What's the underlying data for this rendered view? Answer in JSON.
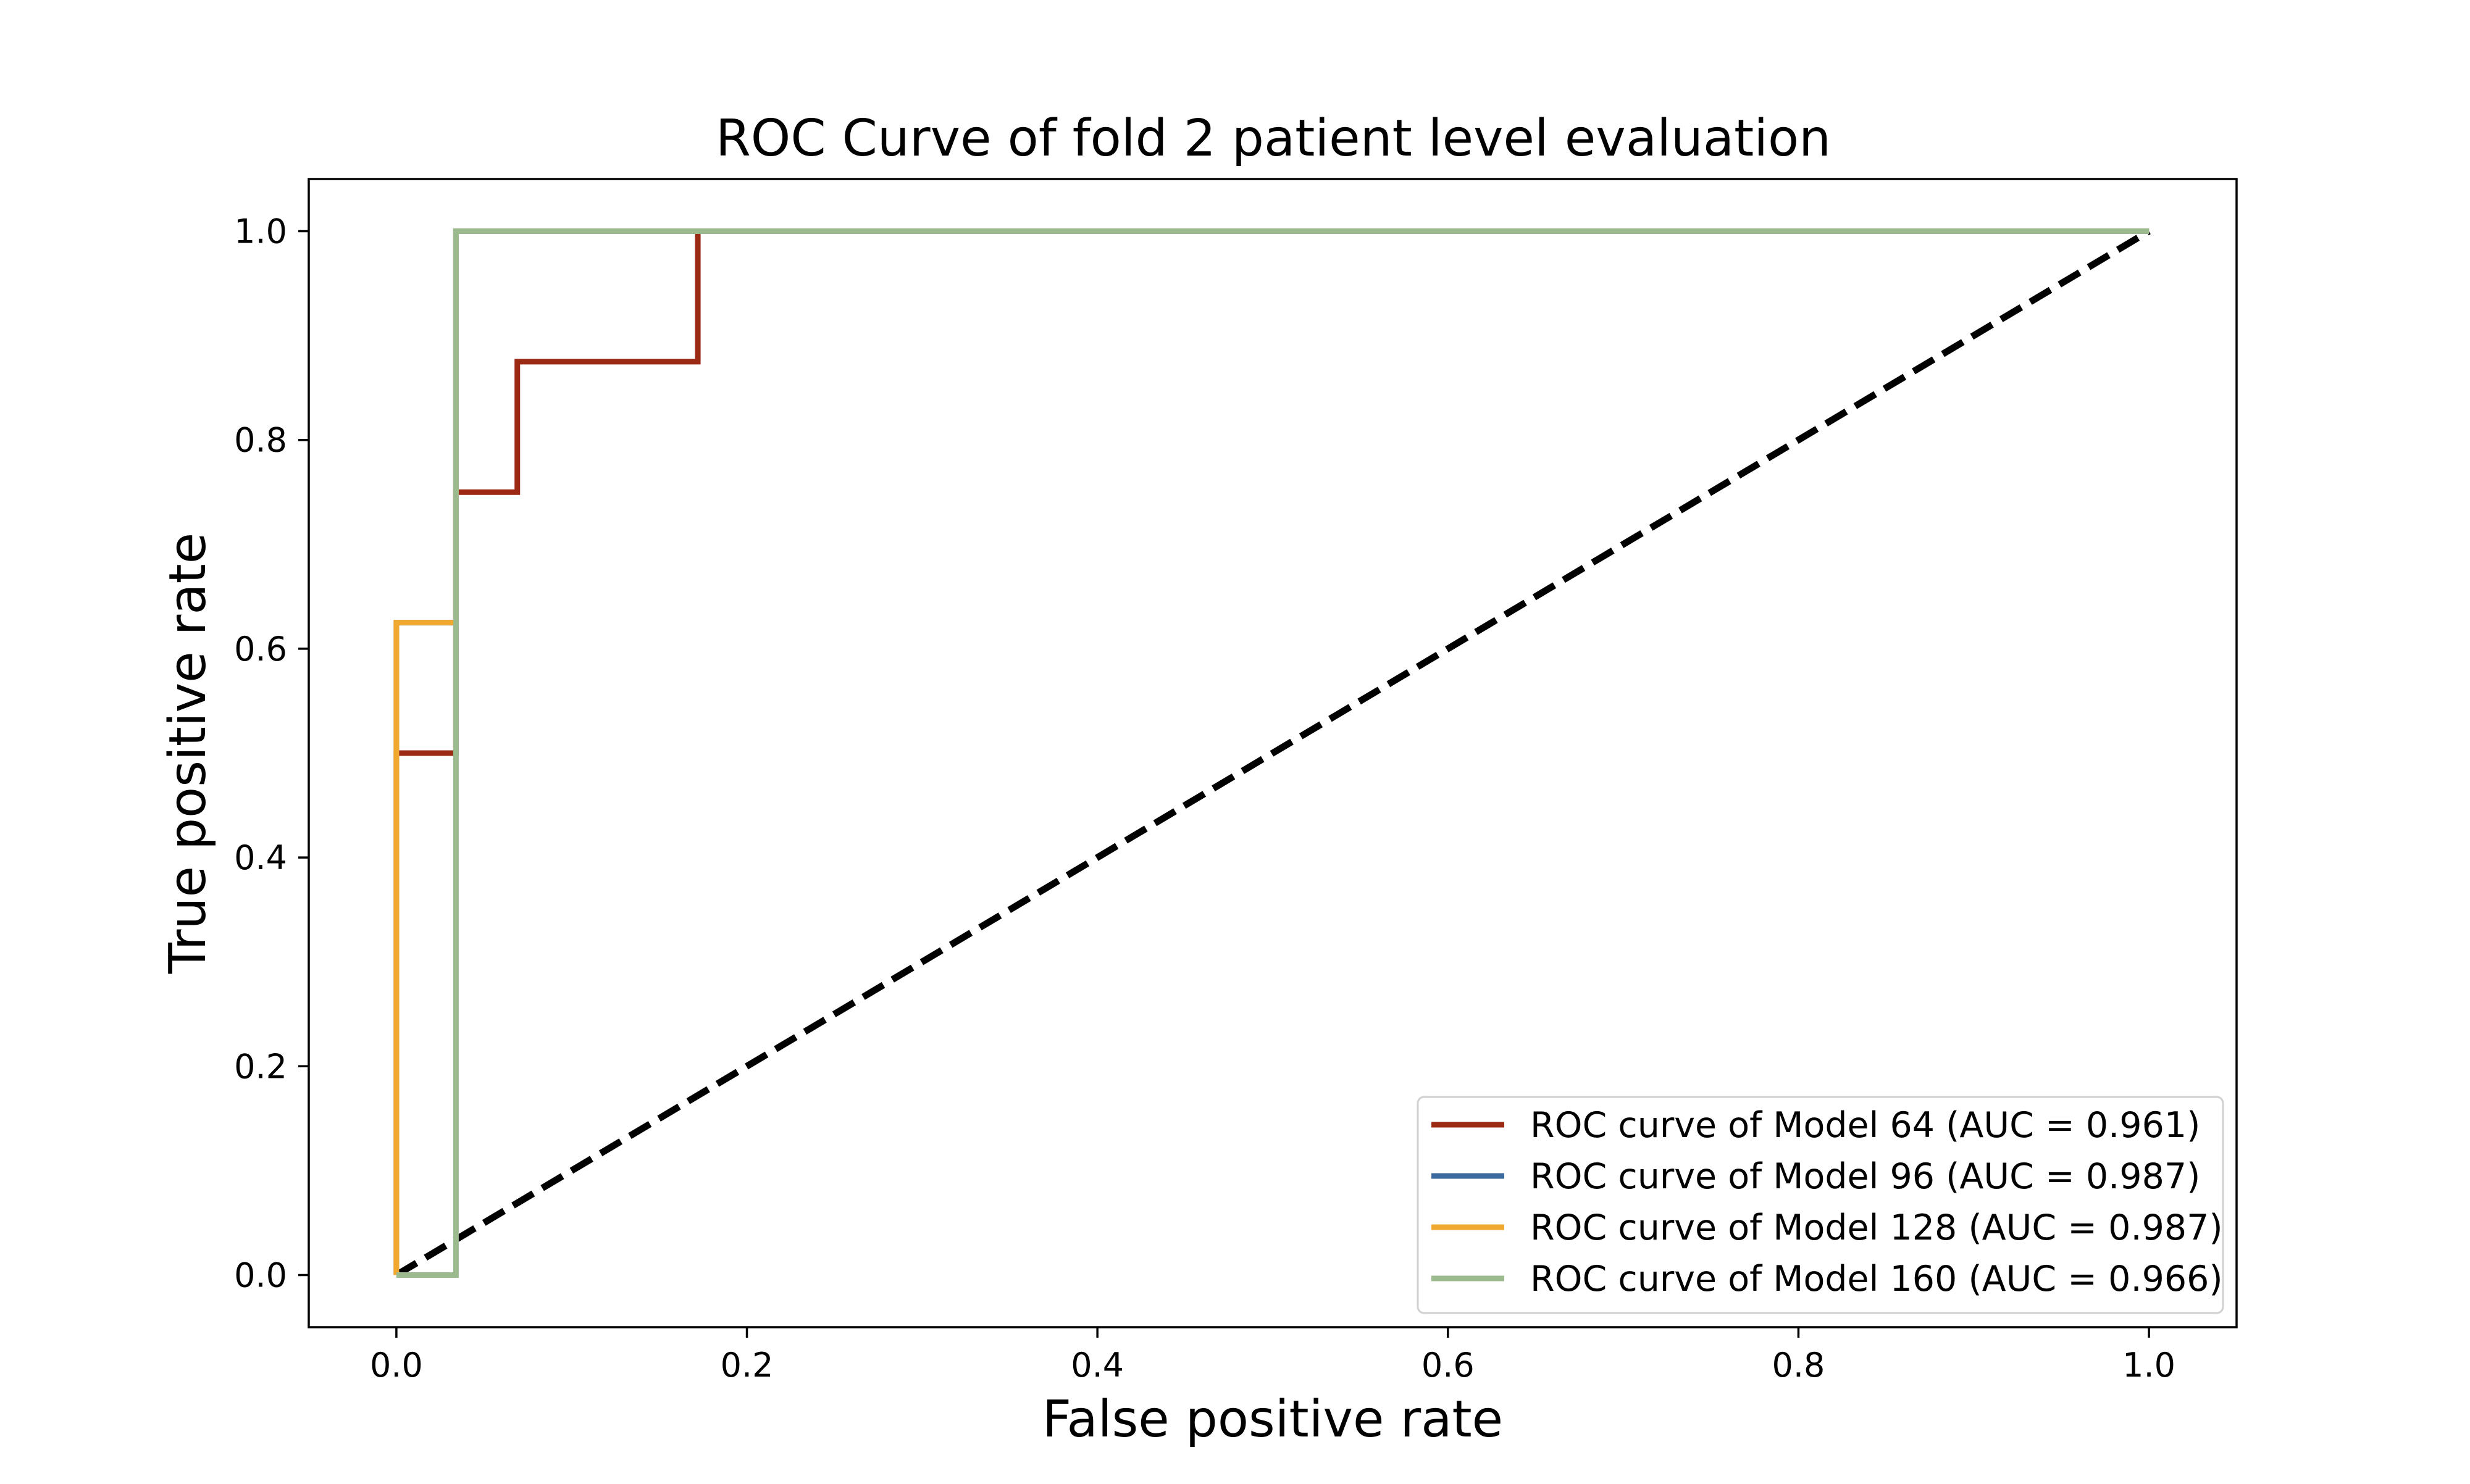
{
  "chart_data": {
    "type": "line",
    "title": "ROC Curve of fold 2 patient level evaluation",
    "xlabel": "False positive rate",
    "ylabel": "True positive rate",
    "xlim": [
      -0.05,
      1.05
    ],
    "ylim": [
      -0.05,
      1.05
    ],
    "xticks": [
      0.0,
      0.2,
      0.4,
      0.6,
      0.8,
      1.0
    ],
    "yticks": [
      0.0,
      0.2,
      0.4,
      0.6,
      0.8,
      1.0
    ],
    "xtick_labels": [
      "0.0",
      "0.2",
      "0.4",
      "0.6",
      "0.8",
      "1.0"
    ],
    "ytick_labels": [
      "0.0",
      "0.2",
      "0.4",
      "0.6",
      "0.8",
      "1.0"
    ],
    "grid": false,
    "legend_position": "lower-right",
    "series": [
      {
        "name": "ROC curve of Model 64 (AUC = 0.961)",
        "color": "#9B2A14",
        "x": [
          0.0,
          0.0,
          0.034,
          0.034,
          0.069,
          0.069,
          0.172,
          0.172,
          1.0
        ],
        "y": [
          0.0,
          0.5,
          0.5,
          0.75,
          0.75,
          0.875,
          0.875,
          1.0,
          1.0
        ]
      },
      {
        "name": "ROC curve of Model 96 (AUC = 0.987)",
        "color": "#3A6A9E",
        "x": [
          0.0,
          0.0,
          0.034,
          0.034,
          1.0
        ],
        "y": [
          0.0,
          0.625,
          0.625,
          1.0,
          1.0
        ]
      },
      {
        "name": "ROC curve of Model 128 (AUC = 0.987)",
        "color": "#F0A92E",
        "x": [
          0.0,
          0.0,
          0.034,
          0.034,
          1.0
        ],
        "y": [
          0.0,
          0.625,
          0.625,
          1.0,
          1.0
        ]
      },
      {
        "name": "ROC curve of Model 160 (AUC = 0.966)",
        "color": "#9BBB8F",
        "x": [
          0.0,
          0.034,
          0.034,
          1.0
        ],
        "y": [
          0.0,
          0.0,
          1.0,
          1.0
        ]
      }
    ],
    "reference_line": {
      "color": "#000000",
      "x": [
        0.0,
        1.0
      ],
      "y": [
        0.0,
        1.0
      ]
    }
  }
}
